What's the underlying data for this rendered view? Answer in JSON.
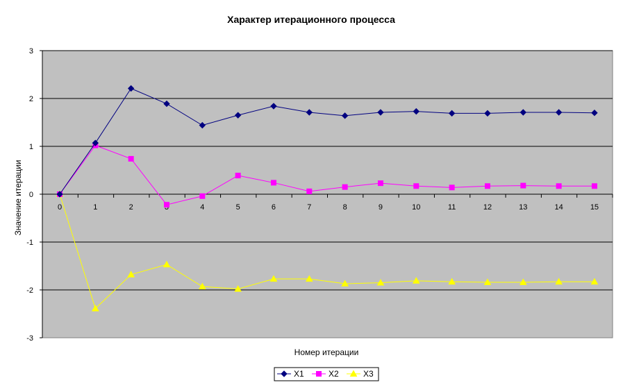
{
  "chart_data": {
    "type": "line",
    "title": "Характер итерационного процесса",
    "xlabel": "Номер итерации",
    "ylabel": "Значение итерации",
    "categories": [
      "0",
      "1",
      "2",
      "3",
      "4",
      "5",
      "6",
      "7",
      "8",
      "9",
      "10",
      "11",
      "12",
      "13",
      "14",
      "15"
    ],
    "ylim": [
      -3,
      3
    ],
    "yticks": [
      "3",
      "2",
      "1",
      "0",
      "-1",
      "-2",
      "-3"
    ],
    "grid": "horizontal",
    "legend_position": "bottom",
    "colors": {
      "plot_background": "#C0C0C0",
      "gridline": "#000000",
      "X1": "#000080",
      "X2": "#FF00FF",
      "X3": "#FFFF00"
    },
    "series": [
      {
        "name": "X1",
        "marker": "diamond",
        "values": [
          0,
          1.07,
          2.21,
          1.89,
          1.44,
          1.65,
          1.84,
          1.71,
          1.64,
          1.71,
          1.73,
          1.69,
          1.69,
          1.71,
          1.71,
          1.7
        ]
      },
      {
        "name": "X2",
        "marker": "square",
        "values": [
          0,
          1.02,
          0.74,
          -0.22,
          -0.04,
          0.39,
          0.24,
          0.06,
          0.15,
          0.23,
          0.17,
          0.14,
          0.17,
          0.18,
          0.17,
          0.17
        ]
      },
      {
        "name": "X3",
        "marker": "triangle",
        "values": [
          0,
          -2.39,
          -1.68,
          -1.47,
          -1.93,
          -1.98,
          -1.77,
          -1.77,
          -1.87,
          -1.85,
          -1.81,
          -1.83,
          -1.84,
          -1.84,
          -1.83,
          -1.83
        ]
      }
    ]
  }
}
